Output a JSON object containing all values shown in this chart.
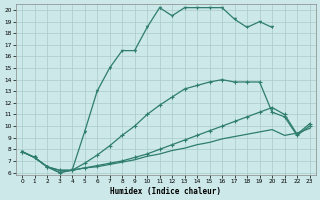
{
  "xlabel": "Humidex (Indice chaleur)",
  "xlim": [
    -0.5,
    23.5
  ],
  "ylim": [
    5.8,
    20.5
  ],
  "yticks": [
    6,
    7,
    8,
    9,
    10,
    11,
    12,
    13,
    14,
    15,
    16,
    17,
    18,
    19,
    20
  ],
  "xticks": [
    0,
    1,
    2,
    3,
    4,
    5,
    6,
    7,
    8,
    9,
    10,
    11,
    12,
    13,
    14,
    15,
    16,
    17,
    18,
    19,
    20,
    21,
    22,
    23
  ],
  "bg_color": "#cce8e8",
  "grid_color": "#aacccc",
  "line_color": "#2e7d6e",
  "line1_x": [
    0,
    1,
    2,
    3,
    4,
    5,
    6,
    7,
    8,
    9,
    10,
    11,
    12,
    13,
    14,
    15,
    16,
    17,
    18,
    19,
    20,
    21,
    22,
    23
  ],
  "line1_y": [
    7.8,
    7.3,
    6.5,
    6.2,
    6.2,
    6.4,
    6.5,
    6.7,
    6.9,
    7.1,
    7.4,
    7.6,
    7.9,
    8.1,
    8.4,
    8.6,
    8.9,
    9.1,
    9.3,
    9.5,
    9.7,
    9.2,
    9.4,
    9.8
  ],
  "line2_x": [
    0,
    1,
    2,
    3,
    4,
    5,
    6,
    7,
    8,
    9,
    10,
    11,
    12,
    13,
    14,
    15,
    16,
    17,
    18,
    19,
    20,
    21,
    22,
    23
  ],
  "line2_y": [
    7.8,
    7.3,
    6.5,
    6.2,
    6.2,
    6.8,
    7.5,
    8.3,
    9.2,
    10.0,
    11.0,
    11.8,
    12.5,
    13.2,
    13.5,
    13.8,
    14.0,
    13.8,
    13.8,
    13.8,
    11.2,
    10.8,
    9.2,
    10.0
  ],
  "line3_x": [
    0,
    1,
    2,
    3,
    4,
    5,
    6,
    7,
    8,
    9,
    10,
    11,
    12,
    13,
    14,
    15,
    16,
    17,
    18,
    19,
    20
  ],
  "line3_y": [
    7.8,
    7.3,
    6.5,
    6.0,
    6.2,
    9.5,
    13.0,
    15.0,
    16.5,
    16.5,
    18.5,
    20.2,
    19.5,
    20.2,
    20.2,
    20.2,
    20.2,
    19.2,
    18.5,
    19.0,
    18.5
  ],
  "line4_x": [
    0,
    1,
    2,
    3,
    4,
    5,
    6,
    7,
    8,
    9,
    10,
    11,
    12,
    13,
    14,
    15,
    16,
    17,
    18,
    19,
    20,
    21,
    22,
    23
  ],
  "line4_y": [
    7.8,
    7.3,
    6.5,
    6.0,
    6.2,
    6.4,
    6.6,
    6.8,
    7.0,
    7.3,
    7.6,
    8.0,
    8.4,
    8.8,
    9.2,
    9.6,
    10.0,
    10.4,
    10.8,
    11.2,
    11.6,
    11.0,
    9.3,
    10.2
  ]
}
